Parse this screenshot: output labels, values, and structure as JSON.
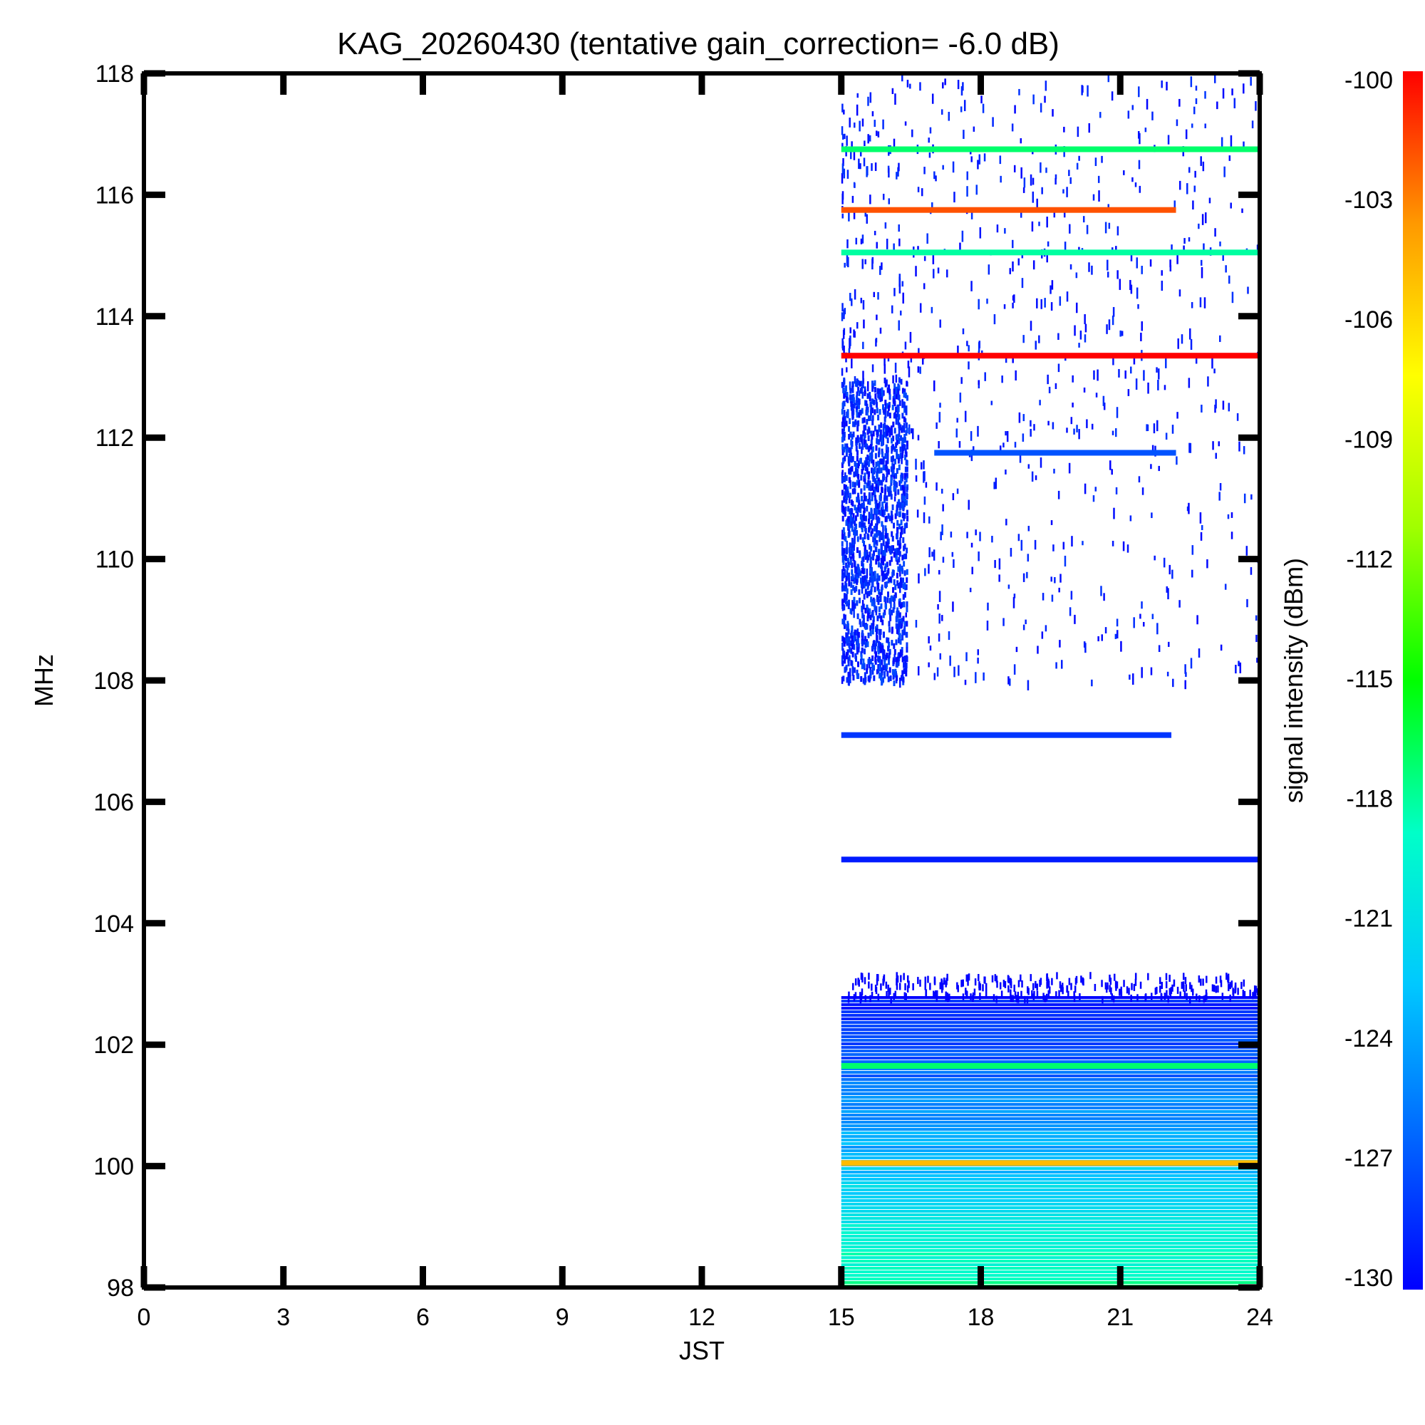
{
  "chart_data": {
    "type": "heatmap",
    "title": "KAG_20260430 (tentative gain_correction= -6.0 dB)",
    "xlabel": "JST",
    "ylabel": "MHz",
    "colorbar_label": "signal intensity (dBm)",
    "xlim": [
      0,
      24
    ],
    "ylim": [
      98,
      118
    ],
    "clim": [
      -130,
      -100
    ],
    "x_ticks": [
      "0",
      "3",
      "6",
      "9",
      "12",
      "15",
      "18",
      "21",
      "24"
    ],
    "y_ticks": [
      "98",
      "100",
      "102",
      "104",
      "106",
      "108",
      "110",
      "112",
      "114",
      "116",
      "118"
    ],
    "colorbar_ticks": [
      "-100",
      "-103",
      "-106",
      "-109",
      "-112",
      "-115",
      "-118",
      "-121",
      "-124",
      "-127",
      "-130"
    ],
    "colormap": [
      "#0000ff",
      "#0066ff",
      "#00c8ff",
      "#00ffc8",
      "#00ff00",
      "#a0ff00",
      "#ffff00",
      "#ff9900",
      "#ff0000"
    ],
    "data_start_jst": 15,
    "bands": [
      {
        "freq_mhz": 116.75,
        "jst": [
          15,
          24
        ],
        "dbm": -117
      },
      {
        "freq_mhz": 115.75,
        "jst": [
          15,
          22.2
        ],
        "dbm": -102
      },
      {
        "freq_mhz": 115.05,
        "jst": [
          15,
          24
        ],
        "dbm": -118
      },
      {
        "freq_mhz": 113.35,
        "jst": [
          15,
          24
        ],
        "dbm": -100
      },
      {
        "freq_mhz": 111.75,
        "jst": [
          17,
          22.2
        ],
        "dbm": -127
      },
      {
        "freq_mhz": 107.1,
        "jst": [
          15,
          22.1
        ],
        "dbm": -128
      },
      {
        "freq_mhz": 105.05,
        "jst": [
          15,
          24
        ],
        "dbm": -129
      },
      {
        "freq_mhz": 101.65,
        "jst": [
          15,
          24
        ],
        "dbm": -117
      },
      {
        "freq_mhz": 100.05,
        "jst": [
          15,
          24
        ],
        "dbm": -105
      }
    ],
    "dense_region": {
      "freq_mhz": [
        98,
        102.8
      ],
      "jst": [
        15,
        24
      ],
      "dbm_low_freq": -118,
      "dbm_high_freq": -129
    }
  }
}
